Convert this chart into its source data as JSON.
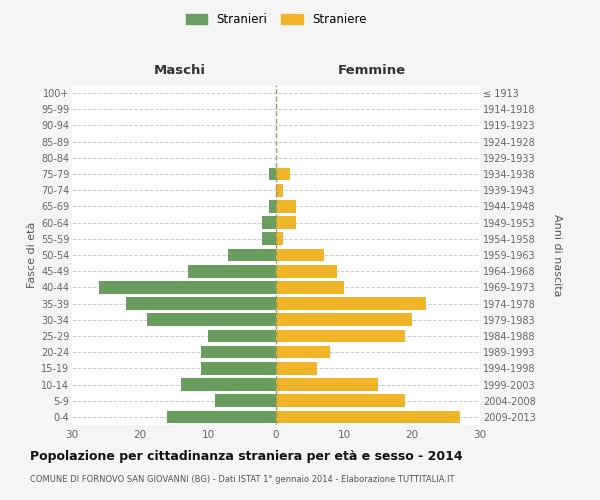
{
  "age_groups": [
    "0-4",
    "5-9",
    "10-14",
    "15-19",
    "20-24",
    "25-29",
    "30-34",
    "35-39",
    "40-44",
    "45-49",
    "50-54",
    "55-59",
    "60-64",
    "65-69",
    "70-74",
    "75-79",
    "80-84",
    "85-89",
    "90-94",
    "95-99",
    "100+"
  ],
  "birth_years": [
    "2009-2013",
    "2004-2008",
    "1999-2003",
    "1994-1998",
    "1989-1993",
    "1984-1988",
    "1979-1983",
    "1974-1978",
    "1969-1973",
    "1964-1968",
    "1959-1963",
    "1954-1958",
    "1949-1953",
    "1944-1948",
    "1939-1943",
    "1934-1938",
    "1929-1933",
    "1924-1928",
    "1919-1923",
    "1914-1918",
    "≤ 1913"
  ],
  "maschi": [
    16,
    9,
    14,
    11,
    11,
    10,
    19,
    22,
    26,
    13,
    7,
    2,
    2,
    1,
    0,
    1,
    0,
    0,
    0,
    0,
    0
  ],
  "femmine": [
    27,
    19,
    15,
    6,
    8,
    19,
    20,
    22,
    10,
    9,
    7,
    1,
    3,
    3,
    1,
    2,
    0,
    0,
    0,
    0,
    0
  ],
  "color_maschi": "#6a9e5e",
  "color_femmine": "#f0b429",
  "title": "Popolazione per cittadinanza straniera per età e sesso - 2014",
  "subtitle": "COMUNE DI FORNOVO SAN GIOVANNI (BG) - Dati ISTAT 1° gennaio 2014 - Elaborazione TUTTITALIA.IT",
  "xlabel_left": "Maschi",
  "xlabel_right": "Femmine",
  "ylabel_left": "Fasce di età",
  "ylabel_right": "Anni di nascita",
  "legend_maschi": "Stranieri",
  "legend_femmine": "Straniere",
  "xlim": 30,
  "background_color": "#f5f5f5",
  "bar_background": "#ffffff"
}
